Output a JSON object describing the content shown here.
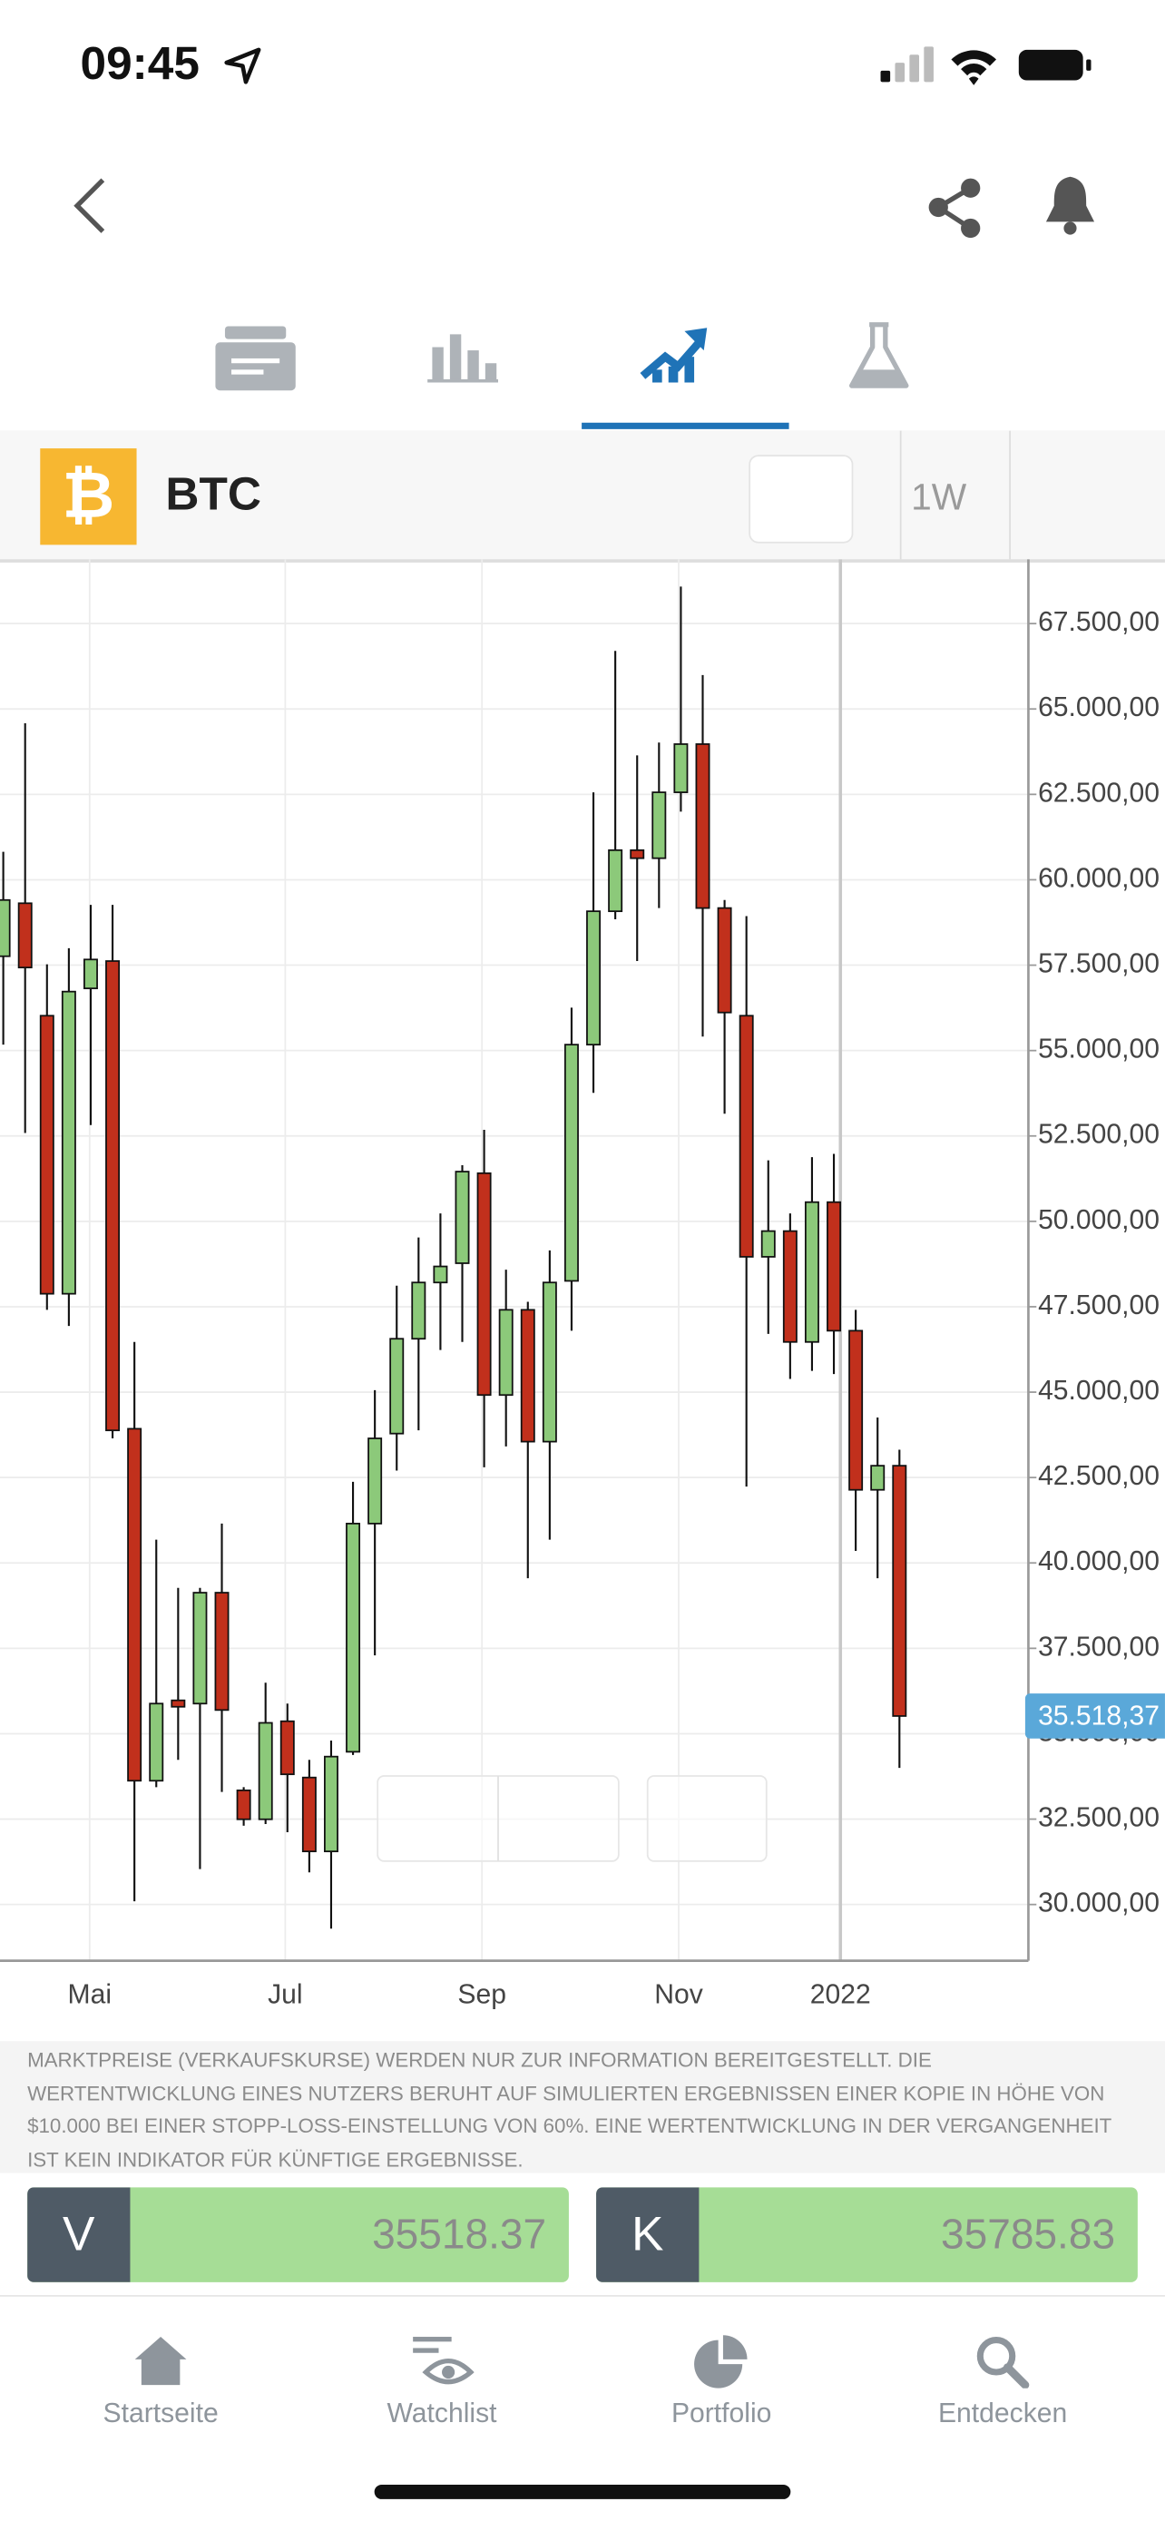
{
  "status_bar": {
    "time": "09:45"
  },
  "instrument": {
    "symbol": "BTC",
    "interval": "1W"
  },
  "chart_data": {
    "type": "candlestick",
    "x": [
      0,
      1,
      2,
      3,
      4,
      5,
      6,
      7,
      8,
      9,
      10,
      11,
      12,
      13,
      14,
      15,
      16,
      17,
      18,
      19,
      20,
      21,
      22,
      23,
      24,
      25,
      26,
      27,
      28,
      29,
      30,
      31,
      32,
      33,
      34,
      35,
      36,
      37,
      38,
      39,
      40,
      41
    ],
    "open": [
      57761,
      59313,
      56020,
      47880,
      56820,
      57620,
      43928,
      33624,
      35977,
      35882,
      39129,
      33342,
      32495,
      35365,
      33718,
      31555,
      34471,
      41152,
      43787,
      46563,
      48210,
      48774,
      51409,
      44916,
      47410,
      43551,
      48257,
      55173,
      59078,
      60866,
      60631,
      62560,
      63971,
      59172,
      56020,
      48962,
      49715,
      46469,
      50562,
      46798,
      42140,
      42846
    ],
    "high": [
      60819,
      64583,
      57525,
      57996,
      59266,
      59266,
      46469,
      40682,
      39270,
      39270,
      41152,
      33436,
      36494,
      35882,
      34236,
      34800,
      42375,
      45057,
      48115,
      49527,
      50233,
      51644,
      52679,
      48586,
      47645,
      49150,
      56255,
      62560,
      66700,
      63642,
      64018,
      68582,
      65994,
      59407,
      58937,
      51786,
      50233,
      51879,
      51974,
      47410,
      44257,
      43316
    ],
    "low": [
      55173,
      52585,
      47410,
      46939,
      52820,
      43646,
      30095,
      33436,
      34236,
      31036,
      33295,
      32307,
      32354,
      32118,
      30942,
      29295,
      34377,
      37294,
      42705,
      43881,
      46233,
      46469,
      42799,
      43410,
      39553,
      40682,
      46798,
      53761,
      58843,
      57620,
      59172,
      61995,
      55408,
      53150,
      42234,
      46704,
      45387,
      45622,
      45528,
      40352,
      39553,
      34000
    ],
    "close": [
      59407,
      57431,
      47880,
      56726,
      57666,
      43881,
      33624,
      35882,
      35789,
      39129,
      35694,
      32495,
      35318,
      33812,
      31555,
      34330,
      41152,
      43646,
      46563,
      48210,
      48680,
      51456,
      44916,
      47410,
      43551,
      48210,
      55173,
      59078,
      60866,
      60631,
      62560,
      63971,
      59172,
      56114,
      48962,
      49715,
      46469,
      50562,
      46798,
      42140,
      42846,
      35518.37
    ],
    "up_color": "#8cc97a",
    "down_color": "#c1301c",
    "xlim": [
      -0.15,
      46.9
    ],
    "xticks": [
      {
        "value": 3.95,
        "label": "Mai"
      },
      {
        "value": 12.9,
        "label": "Jul"
      },
      {
        "value": 21.9,
        "label": "Sep"
      },
      {
        "value": 30.9,
        "label": "Nov"
      },
      {
        "value": 38.3,
        "label": "2022"
      }
    ],
    "ylim": [
      28354,
      69382
    ],
    "yticks": [
      {
        "value": 67500,
        "label": "67.500,00"
      },
      {
        "value": 65000,
        "label": "65.000,00"
      },
      {
        "value": 62500,
        "label": "62.500,00"
      },
      {
        "value": 60000,
        "label": "60.000,00"
      },
      {
        "value": 57500,
        "label": "57.500,00"
      },
      {
        "value": 55000,
        "label": "55.000,00"
      },
      {
        "value": 52500,
        "label": "52.500,00"
      },
      {
        "value": 50000,
        "label": "50.000,00"
      },
      {
        "value": 47500,
        "label": "47.500,00"
      },
      {
        "value": 45000,
        "label": "45.000,00"
      },
      {
        "value": 42500,
        "label": "42.500,00"
      },
      {
        "value": 40000,
        "label": "40.000,00"
      },
      {
        "value": 37500,
        "label": "37.500,00"
      },
      {
        "value": 35000,
        "label": "35.000,00"
      },
      {
        "value": 32500,
        "label": "32.500,00"
      },
      {
        "value": 30000,
        "label": "30.000,00"
      }
    ],
    "grid": true,
    "last_price": 35518.37,
    "last_price_label": "35.518,37"
  },
  "disclaimer": "MARKTPREISE (VERKAUFSKURSE) WERDEN NUR ZUR INFORMATION BEREITGESTELLT. DIE WERTENTWICKLUNG EINES NUTZERS BERUHT AUF SIMULIERTEN ERGEBNISSEN EINER KOPIE IN HÖHE VON $10.000 BEI EINER STOPP-LOSS-EINSTELLUNG VON 60%. EINE WERTENTWICKLUNG IN DER VERGANGENHEIT IST KEIN INDIKATOR FÜR KÜNFTIGE ERGEBNISSE.",
  "trade_buttons": [
    {
      "letter": "V",
      "price": 35518.37
    },
    {
      "letter": "K",
      "price": 35785.83
    }
  ],
  "nav": [
    "Startseite",
    "Watchlist",
    "Portfolio",
    "Entdecken"
  ]
}
